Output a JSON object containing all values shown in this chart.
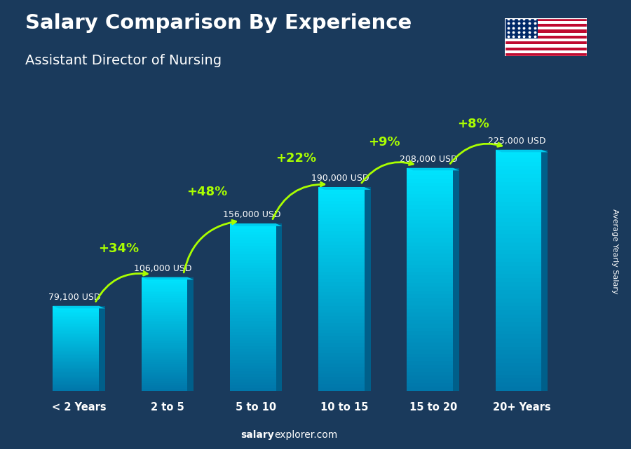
{
  "title": "Salary Comparison By Experience",
  "subtitle": "Assistant Director of Nursing",
  "categories": [
    "< 2 Years",
    "2 to 5",
    "5 to 10",
    "10 to 15",
    "15 to 20",
    "20+ Years"
  ],
  "values": [
    79100,
    106000,
    156000,
    190000,
    208000,
    225000
  ],
  "labels": [
    "79,100 USD",
    "106,000 USD",
    "156,000 USD",
    "190,000 USD",
    "208,000 USD",
    "225,000 USD"
  ],
  "pct_changes": [
    "+34%",
    "+48%",
    "+22%",
    "+9%",
    "+8%"
  ],
  "bar_color_bottom": "#0077aa",
  "bar_color_top": "#00e5ff",
  "bar_side_color": "#005f8a",
  "bar_top_color": "#00ccee",
  "bg_color": "#1a3a5c",
  "text_green": "#aaff00",
  "ylabel": "Average Yearly Salary",
  "footer_bold": "salary",
  "footer_normal": "explorer.com",
  "ylim_max": 260000,
  "pct_arc_offsets": [
    0.08,
    0.09,
    0.08,
    0.07,
    0.07
  ],
  "flag_red": "#BF0A30",
  "flag_blue": "#002868"
}
